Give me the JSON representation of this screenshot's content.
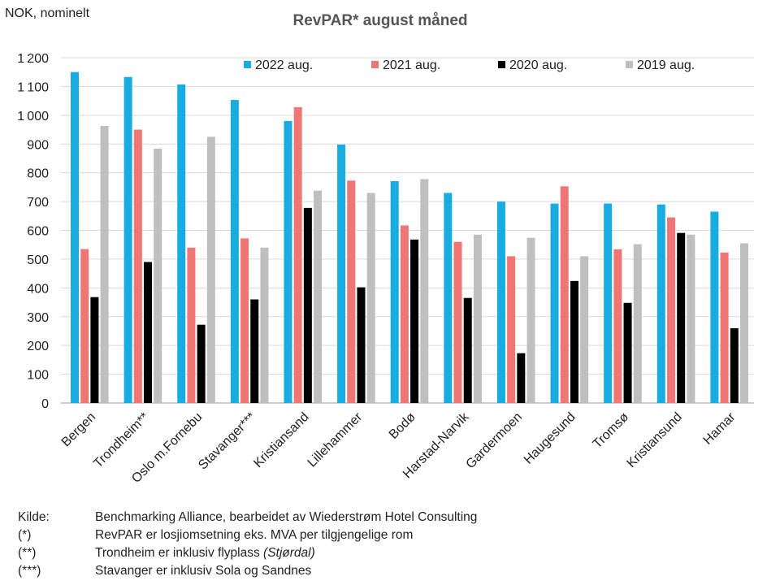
{
  "chart_data": {
    "type": "bar",
    "title": "RevPAR* august måned",
    "ylabel": "NOK, nominelt",
    "xlabel": "",
    "ylim": [
      0,
      1200
    ],
    "ytick_step": 100,
    "grid": true,
    "legend_position": "top",
    "categories": [
      "Bergen",
      "Trondheim**",
      "Oslo m.Fornebu",
      "Stavanger***",
      "Kristiansand",
      "Lillehammer",
      "Bodø",
      "Harstad-Narvik",
      "Gardermoen",
      "Haugesund",
      "Tromsø",
      "Kristiansund",
      "Hamar"
    ],
    "series": [
      {
        "name": "2022 aug.",
        "color": "#18ACE0",
        "values": [
          1150,
          1133,
          1107,
          1053,
          980,
          898,
          771,
          730,
          700,
          693,
          693,
          690,
          665
        ]
      },
      {
        "name": "2021 aug.",
        "color": "#F07575",
        "values": [
          535,
          950,
          540,
          572,
          1028,
          773,
          617,
          560,
          510,
          753,
          534,
          645,
          523
        ]
      },
      {
        "name": "2020 aug.",
        "color": "#000000",
        "values": [
          368,
          490,
          272,
          360,
          678,
          402,
          568,
          365,
          173,
          424,
          348,
          591,
          260
        ]
      },
      {
        "name": "2019 aug.",
        "color": "#BFBFBF",
        "values": [
          963,
          884,
          925,
          540,
          738,
          730,
          778,
          585,
          574,
          510,
          552,
          585,
          555
        ]
      }
    ]
  },
  "footnotes": [
    {
      "key": "Kilde:",
      "text": "Benchmarking Alliance, bearbeidet av Wiederstrøm Hotel Consulting",
      "note": ""
    },
    {
      "key": "(*)",
      "text": "RevPAR er losjiomsetning eks. MVA  per tilgjengelige rom",
      "note": ""
    },
    {
      "key": "(**)",
      "text": "Trondheim er inklusiv flyplass ",
      "note": "(Stjørdal)"
    },
    {
      "key": "(***)",
      "text": "Stavanger er  inklusiv  Sola og  Sandnes",
      "note": ""
    }
  ]
}
